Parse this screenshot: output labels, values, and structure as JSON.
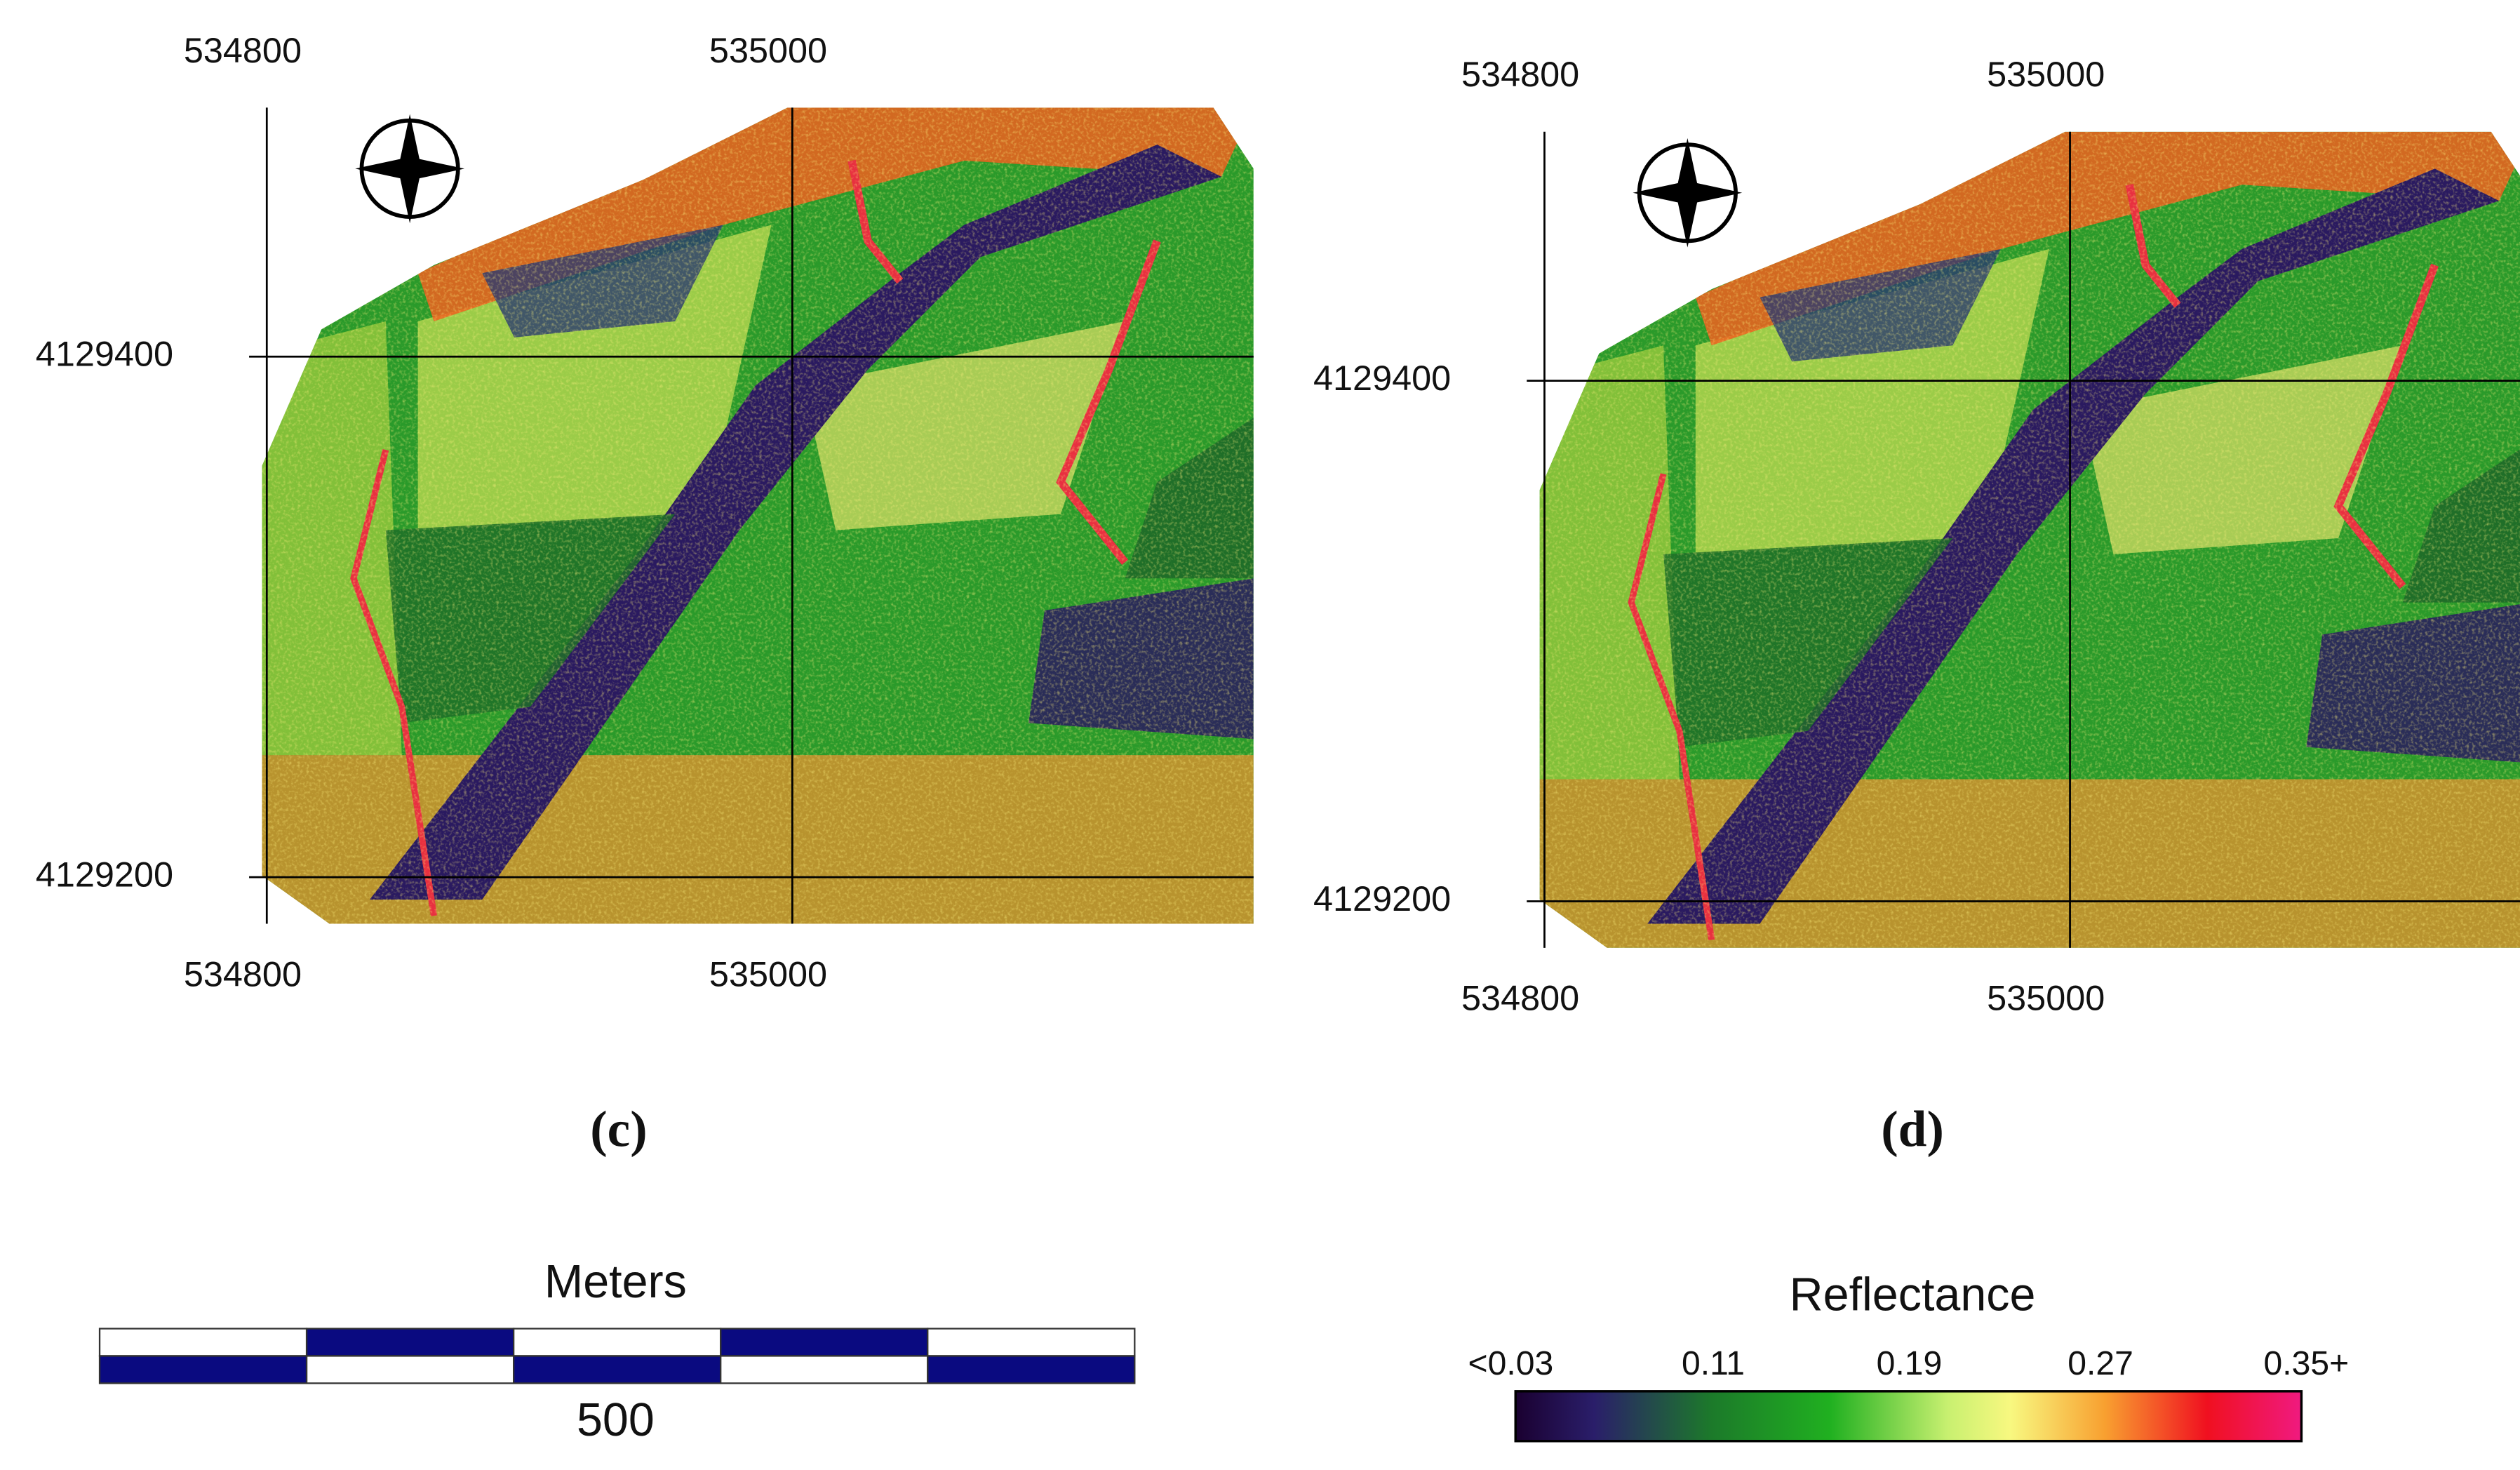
{
  "panels": [
    {
      "label": "(c)",
      "x_labels": [
        "534800",
        "535000"
      ],
      "y_labels": [
        "4129400",
        "4129200"
      ]
    },
    {
      "label": "(d)",
      "x_labels": [
        "534800",
        "535000"
      ],
      "y_labels": [
        "4129400",
        "4129200"
      ]
    }
  ],
  "scale_bar": {
    "title": "Meters",
    "label": "500"
  },
  "legend": {
    "title": "Reflectance",
    "labels": [
      "<0.03",
      "0.11",
      "0.19",
      "0.27",
      "0.35+"
    ]
  }
}
